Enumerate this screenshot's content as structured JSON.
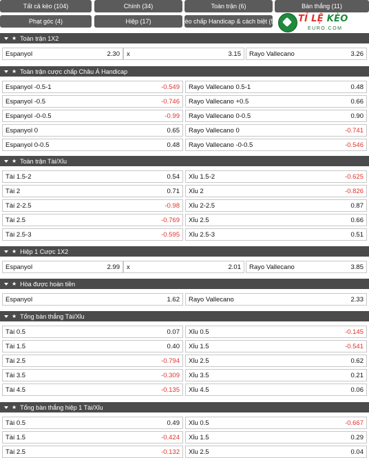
{
  "tabs": [
    {
      "label": "Tất cả kèo (104)",
      "active": true
    },
    {
      "label": "Chính (34)",
      "active": false
    },
    {
      "label": "Toàn trận (6)",
      "active": false
    },
    {
      "label": "Bàn thắng (11)",
      "active": false
    },
    {
      "label": "Phạt góc (4)",
      "active": false
    },
    {
      "label": "Hiệp (17)",
      "active": false
    },
    {
      "label": "Kèo chấp Handicap & cách biệt (5)",
      "active": false
    }
  ],
  "logo": {
    "brand_red": "TỈ LỆ ",
    "brand_green": "KÈO",
    "sub": "EURO.COM"
  },
  "colors": {
    "header": "#4b4b4b",
    "active_tab": "#2e6b3a",
    "tab": "#5b5b5b",
    "negative": "#e0322b"
  },
  "sections": [
    {
      "title": "Toàn trận 1X2",
      "layout": "three",
      "rows": [
        [
          {
            "label": "Espanyol",
            "value": "2.30"
          },
          {
            "label": "x",
            "value": "3.15"
          },
          {
            "label": "Rayo Vallecano",
            "value": "3.26"
          }
        ]
      ]
    },
    {
      "title": "Toàn trận cược chấp Châu Á Handicap",
      "layout": "two",
      "rows": [
        [
          {
            "label": "Espanyol -0.5-1",
            "value": "-0.549"
          },
          {
            "label": "Rayo Vallecano 0.5-1",
            "value": "0.48"
          }
        ],
        [
          {
            "label": "Espanyol -0.5",
            "value": "-0.746"
          },
          {
            "label": "Rayo Vallecano +0.5",
            "value": "0.66"
          }
        ],
        [
          {
            "label": "Espanyol -0-0.5",
            "value": "-0.99"
          },
          {
            "label": "Rayo Vallecano 0-0.5",
            "value": "0.90"
          }
        ],
        [
          {
            "label": "Espanyol 0",
            "value": "0.65"
          },
          {
            "label": "Rayo Vallecano 0",
            "value": "-0.741"
          }
        ],
        [
          {
            "label": "Espanyol 0-0.5",
            "value": "0.48"
          },
          {
            "label": "Rayo Vallecano -0-0.5",
            "value": "-0.546"
          }
        ]
      ]
    },
    {
      "title": "Toàn trận Tài/Xỉu",
      "layout": "two",
      "rows": [
        [
          {
            "label": "Tài 1.5-2",
            "value": "0.54"
          },
          {
            "label": "Xỉu 1.5-2",
            "value": "-0.625"
          }
        ],
        [
          {
            "label": "Tài 2",
            "value": "0.71"
          },
          {
            "label": "Xỉu 2",
            "value": "-0.826"
          }
        ],
        [
          {
            "label": "Tài 2-2.5",
            "value": "-0.98"
          },
          {
            "label": "Xỉu 2-2.5",
            "value": "0.87"
          }
        ],
        [
          {
            "label": "Tài 2.5",
            "value": "-0.769"
          },
          {
            "label": "Xỉu 2.5",
            "value": "0.66"
          }
        ],
        [
          {
            "label": "Tài 2.5-3",
            "value": "-0.595"
          },
          {
            "label": "Xỉu 2.5-3",
            "value": "0.51"
          }
        ]
      ]
    },
    {
      "title": "Hiệp 1 Cược 1X2",
      "layout": "three",
      "rows": [
        [
          {
            "label": "Espanyol",
            "value": "2.99"
          },
          {
            "label": "x",
            "value": "2.01"
          },
          {
            "label": "Rayo Vallecano",
            "value": "3.85"
          }
        ]
      ]
    },
    {
      "title": "Hòa được hoàn tiền",
      "layout": "two",
      "rows": [
        [
          {
            "label": "Espanyol",
            "value": "1.62"
          },
          {
            "label": "Rayo Vallecano",
            "value": "2.33"
          }
        ]
      ]
    },
    {
      "title": "Tổng bàn thắng Tài/Xỉu",
      "layout": "two",
      "rows": [
        [
          {
            "label": "Tài 0.5",
            "value": "0.07"
          },
          {
            "label": "Xỉu 0.5",
            "value": "-0.145"
          }
        ],
        [
          {
            "label": "Tài 1.5",
            "value": "0.40"
          },
          {
            "label": "Xỉu 1.5",
            "value": "-0.541"
          }
        ],
        [
          {
            "label": "Tài 2.5",
            "value": "-0.794"
          },
          {
            "label": "Xỉu 2.5",
            "value": "0.62"
          }
        ],
        [
          {
            "label": "Tài 3.5",
            "value": "-0.309"
          },
          {
            "label": "Xỉu 3.5",
            "value": "0.21"
          }
        ],
        [
          {
            "label": "Tài 4.5",
            "value": "-0.135"
          },
          {
            "label": "Xỉu 4.5",
            "value": "0.06"
          }
        ]
      ]
    },
    {
      "title": "Tổng bàn thắng hiệp 1 Tài/Xỉu",
      "layout": "two",
      "rows": [
        [
          {
            "label": "Tài 0.5",
            "value": "0.49"
          },
          {
            "label": "Xỉu 0.5",
            "value": "-0.667"
          }
        ],
        [
          {
            "label": "Tài 1.5",
            "value": "-0.424"
          },
          {
            "label": "Xỉu 1.5",
            "value": "0.29"
          }
        ],
        [
          {
            "label": "Tài 2.5",
            "value": "-0.132"
          },
          {
            "label": "Xỉu 2.5",
            "value": "0.04"
          }
        ]
      ]
    }
  ]
}
